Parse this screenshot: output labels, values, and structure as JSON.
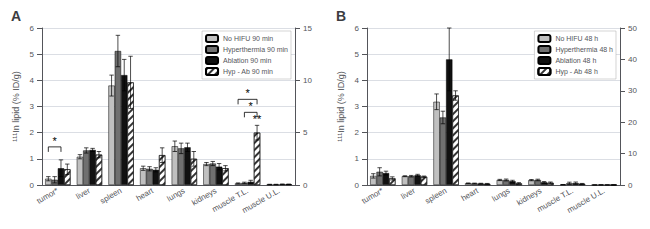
{
  "chart_data": [
    {
      "type": "bar",
      "title": "A",
      "ylabel": "¹¹¹In lipid (% ID/g)",
      "categories": [
        "tumor*",
        "liver",
        "spleen",
        "heart",
        "lungs",
        "kidneys",
        "muscle T.L.",
        "muscle U.L."
      ],
      "series": [
        {
          "name": "No HIFU 90 min",
          "color": "#c0c0c0",
          "axis": "y2",
          "values": [
            0.6,
            2.7,
            9.5,
            1.6,
            3.7,
            2.0,
            0.15,
            0.05
          ],
          "errors": [
            0.2,
            0.2,
            1.0,
            0.2,
            0.5,
            0.15,
            0.05,
            0.02
          ]
        },
        {
          "name": "Hyperthermia 90 min",
          "color": "#707070",
          "axis": "y2",
          "values": [
            0.5,
            3.3,
            12.8,
            1.55,
            3.5,
            2.05,
            0.2,
            0.05
          ],
          "errors": [
            0.3,
            0.25,
            1.5,
            0.2,
            0.5,
            0.2,
            0.07,
            0.02
          ]
        },
        {
          "name": "Ablation 90 min",
          "color": "#111111",
          "axis": "y2",
          "values": [
            1.6,
            3.35,
            10.5,
            1.45,
            3.6,
            1.75,
            0.3,
            0.07
          ],
          "errors": [
            0.8,
            0.15,
            1.5,
            0.2,
            0.4,
            0.3,
            0.15,
            0.03
          ]
        },
        {
          "name": "Hyp - Ab 90 min",
          "color": "#ffffff",
          "axis": "y2",
          "values": [
            1.5,
            2.9,
            9.8,
            2.85,
            2.5,
            1.6,
            5.0,
            0.07
          ],
          "errors": [
            0.5,
            0.3,
            2.5,
            0.7,
            0.7,
            0.25,
            0.7,
            0.02
          ]
        }
      ],
      "ylim": [
        0,
        6
      ],
      "yticks": [
        0,
        1,
        2,
        3,
        4,
        5,
        6
      ],
      "y2lim": [
        0,
        15
      ],
      "y2ticks": [
        0,
        5,
        10,
        15
      ],
      "grid": true,
      "legend": "upper right",
      "annotations": [
        {
          "text": "*",
          "category": "tumor*",
          "series": [
            "No HIFU 90 min",
            "Ablation 90 min"
          ]
        },
        {
          "text": "**",
          "category": "muscle T.L.",
          "series": [
            "Hyp - Ab 90 min"
          ]
        },
        {
          "text": "*",
          "category": "muscle T.L.",
          "series": [
            "No HIFU 90 min",
            "Hyp - Ab 90 min"
          ]
        },
        {
          "text": "*",
          "category": "muscle T.L.",
          "series": [
            "Hyperthermia 90 min",
            "Hyp - Ab 90 min"
          ]
        }
      ]
    },
    {
      "type": "bar",
      "title": "B",
      "ylabel": "¹¹¹In lipid (% ID/g)",
      "categories": [
        "tumor*",
        "liver",
        "spleen",
        "heart",
        "lungs",
        "kidneys",
        "muscle T.L.",
        "muscle U.L."
      ],
      "series": [
        {
          "name": "No HIFU 48 h",
          "color": "#c0c0c0",
          "axis": "y2",
          "values": [
            2.9,
            2.8,
            26.5,
            0.55,
            1.6,
            1.55,
            0.12,
            0.03
          ],
          "errors": [
            0.7,
            0.15,
            2.5,
            0.1,
            0.2,
            0.2,
            0.04,
            0.01
          ]
        },
        {
          "name": "Hyperthermia 48 h",
          "color": "#707070",
          "axis": "y2",
          "values": [
            4.2,
            2.8,
            21.5,
            0.5,
            1.6,
            1.6,
            0.55,
            0.05
          ],
          "errors": [
            1.3,
            0.25,
            2.0,
            0.1,
            0.3,
            0.25,
            0.35,
            0.02
          ]
        },
        {
          "name": "Ablation 48 h",
          "color": "#111111",
          "axis": "y2",
          "values": [
            3.8,
            3.1,
            40.0,
            0.45,
            1.2,
            0.85,
            0.6,
            0.04
          ],
          "errors": [
            0.6,
            0.3,
            10.0,
            0.1,
            0.3,
            0.25,
            0.35,
            0.02
          ]
        },
        {
          "name": "Hyp - Ab 48 h",
          "color": "#ffffff",
          "axis": "y2",
          "values": [
            2.1,
            2.65,
            28.5,
            0.35,
            0.5,
            0.7,
            0.35,
            0.03
          ],
          "errors": [
            0.5,
            0.2,
            1.5,
            0.15,
            0.25,
            0.25,
            0.15,
            0.01
          ]
        }
      ],
      "ylim": [
        0,
        6
      ],
      "yticks": [
        0,
        1,
        2,
        3,
        4,
        5,
        6
      ],
      "y2lim": [
        0,
        50
      ],
      "y2ticks": [
        0,
        10,
        20,
        30,
        40,
        50
      ],
      "grid": true,
      "legend": "upper right"
    }
  ]
}
